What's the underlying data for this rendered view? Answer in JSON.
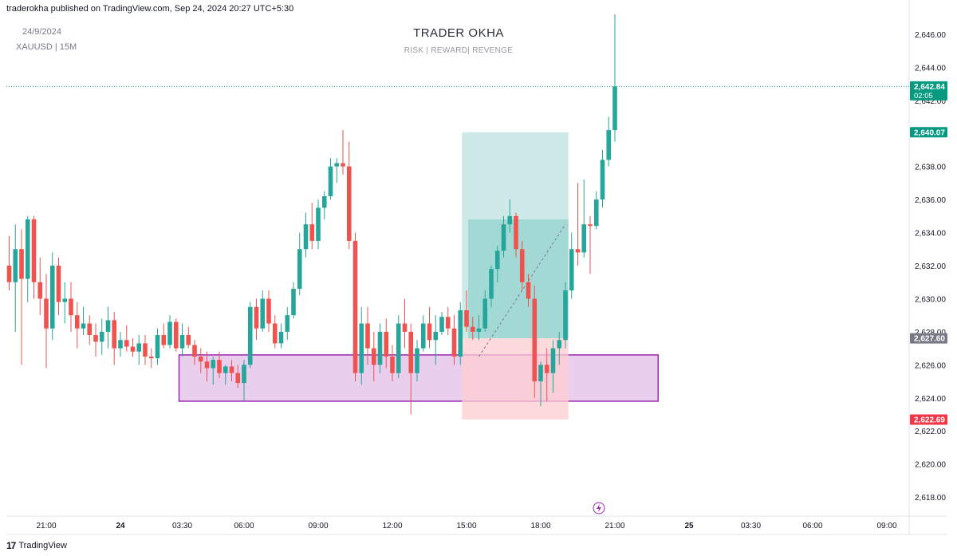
{
  "header": {
    "publisher": "traderokha published on TradingView.com, Sep 24, 2024 20:27 UTC+5:30"
  },
  "meta": {
    "date": "24/9/2024",
    "symbol": "XAUUSD | 15M"
  },
  "title": {
    "main": "TRADER OKHA",
    "sub": "RISK | REWARD| REVENGE"
  },
  "footer": {
    "brand": "TradingView",
    "logo_icon": "tradingview-logo-icon"
  },
  "colors": {
    "up": "#26a69a",
    "down": "#ef5350",
    "zone_stroke": "#9c27b0",
    "zone_fill": "#e1bee7",
    "profit": "#b2dfdb",
    "loss": "#ffcdd2"
  },
  "chart_data": {
    "type": "candlestick",
    "symbol": "XAUUSD",
    "interval": "15M",
    "ylim": [
      2616.8,
      2647.2
    ],
    "y_ticks": [
      "2,646.00",
      "2,644.00",
      "2,642.00",
      "2,640.00",
      "2,638.00",
      "2,636.00",
      "2,634.00",
      "2,632.00",
      "2,630.00",
      "2,628.00",
      "2,626.00",
      "2,624.00",
      "2,622.00",
      "2,620.00",
      "2,618.00"
    ],
    "x_ticks": [
      {
        "label": "21:00",
        "index": 6
      },
      {
        "label": "24",
        "index": 18
      },
      {
        "label": "03:30",
        "index": 28
      },
      {
        "label": "06:00",
        "index": 38
      },
      {
        "label": "09:00",
        "index": 50
      },
      {
        "label": "12:00",
        "index": 62
      },
      {
        "label": "15:00",
        "index": 74
      },
      {
        "label": "18:00",
        "index": 86
      },
      {
        "label": "21:00",
        "index": 98
      },
      {
        "label": "25",
        "index": 110
      },
      {
        "label": "03:30",
        "index": 120
      },
      {
        "label": "06:00",
        "index": 130
      },
      {
        "label": "09:00",
        "index": 142
      }
    ],
    "price_labels": [
      {
        "value": "2,642.84",
        "extra": "02:05",
        "price": 2642.84,
        "kind": "last"
      },
      {
        "value": "2,640.07",
        "price": 2640.07,
        "kind": "target"
      },
      {
        "value": "2,627.60",
        "price": 2627.6,
        "kind": "entry"
      },
      {
        "value": "2,622.69",
        "price": 2622.69,
        "kind": "stop"
      }
    ],
    "last_price_line": 2642.84,
    "zone": {
      "from_index": 28,
      "to_index": 105,
      "top": 2626.6,
      "bottom": 2623.8
    },
    "position": {
      "from_index": 73,
      "to_index": 91,
      "entry": 2627.6,
      "target": 2640.07,
      "stop": 2622.69,
      "inner_top": 2634.8,
      "inner_from_index": 74
    },
    "candles": [
      [
        2632.0,
        2633.8,
        2630.5,
        2631.0
      ],
      [
        2631.0,
        2634.5,
        2628.0,
        2633.0
      ],
      [
        2633.0,
        2634.2,
        2626.0,
        2631.2
      ],
      [
        2631.2,
        2635.0,
        2629.8,
        2634.8
      ],
      [
        2634.8,
        2635.0,
        2630.0,
        2631.0
      ],
      [
        2631.0,
        2632.5,
        2629.0,
        2630.0
      ],
      [
        2630.0,
        2631.5,
        2625.8,
        2628.2
      ],
      [
        2628.2,
        2632.8,
        2627.5,
        2632.0
      ],
      [
        2632.0,
        2632.5,
        2629.0,
        2629.8
      ],
      [
        2629.8,
        2631.0,
        2628.5,
        2630.0
      ],
      [
        2630.0,
        2631.0,
        2628.0,
        2629.0
      ],
      [
        2629.0,
        2629.8,
        2627.0,
        2628.2
      ],
      [
        2628.2,
        2629.5,
        2627.8,
        2628.5
      ],
      [
        2628.5,
        2629.0,
        2627.2,
        2627.8
      ],
      [
        2627.8,
        2628.5,
        2626.5,
        2627.4
      ],
      [
        2627.4,
        2628.8,
        2626.6,
        2628.0
      ],
      [
        2628.0,
        2629.5,
        2627.0,
        2628.7
      ],
      [
        2628.7,
        2629.2,
        2626.0,
        2627.0
      ],
      [
        2627.0,
        2628.0,
        2626.5,
        2627.5
      ],
      [
        2627.5,
        2628.4,
        2626.8,
        2627.1
      ],
      [
        2627.1,
        2627.6,
        2626.5,
        2626.8
      ],
      [
        2626.8,
        2627.8,
        2626.0,
        2627.3
      ],
      [
        2627.3,
        2627.8,
        2626.0,
        2626.5
      ],
      [
        2626.5,
        2627.0,
        2625.8,
        2626.4
      ],
      [
        2626.4,
        2628.2,
        2626.0,
        2627.8
      ],
      [
        2627.8,
        2628.5,
        2627.0,
        2627.2
      ],
      [
        2627.2,
        2629.0,
        2627.0,
        2628.6
      ],
      [
        2628.6,
        2628.8,
        2626.8,
        2627.0
      ],
      [
        2627.0,
        2628.5,
        2626.5,
        2627.8
      ],
      [
        2627.8,
        2628.3,
        2627.0,
        2627.2
      ],
      [
        2627.2,
        2627.5,
        2626.0,
        2626.5
      ],
      [
        2626.5,
        2627.0,
        2625.5,
        2626.2
      ],
      [
        2626.2,
        2626.8,
        2625.0,
        2625.8
      ],
      [
        2625.8,
        2626.5,
        2624.8,
        2626.3
      ],
      [
        2626.3,
        2626.8,
        2625.2,
        2625.5
      ],
      [
        2625.5,
        2626.0,
        2624.8,
        2625.9
      ],
      [
        2625.9,
        2626.3,
        2625.0,
        2625.5
      ],
      [
        2625.5,
        2626.0,
        2624.6,
        2624.9
      ],
      [
        2624.9,
        2626.3,
        2623.8,
        2626.0
      ],
      [
        2626.0,
        2629.8,
        2625.8,
        2629.5
      ],
      [
        2629.5,
        2630.0,
        2627.5,
        2628.2
      ],
      [
        2628.2,
        2630.5,
        2628.0,
        2630.0
      ],
      [
        2630.0,
        2630.5,
        2628.0,
        2628.5
      ],
      [
        2628.5,
        2629.0,
        2627.0,
        2627.3
      ],
      [
        2627.3,
        2628.5,
        2627.0,
        2628.0
      ],
      [
        2628.0,
        2629.5,
        2627.5,
        2629.0
      ],
      [
        2629.0,
        2631.0,
        2628.8,
        2630.6
      ],
      [
        2630.6,
        2634.0,
        2630.2,
        2633.0
      ],
      [
        2633.0,
        2635.2,
        2632.5,
        2634.5
      ],
      [
        2634.5,
        2635.8,
        2633.0,
        2633.5
      ],
      [
        2633.5,
        2636.0,
        2633.0,
        2635.5
      ],
      [
        2635.5,
        2636.5,
        2634.8,
        2636.2
      ],
      [
        2636.2,
        2638.5,
        2636.0,
        2638.0
      ],
      [
        2638.0,
        2638.5,
        2637.0,
        2638.2
      ],
      [
        2638.2,
        2640.2,
        2637.5,
        2638.0
      ],
      [
        2638.0,
        2639.5,
        2633.0,
        2633.5
      ],
      [
        2633.5,
        2634.0,
        2625.0,
        2625.5
      ],
      [
        2625.5,
        2629.5,
        2624.8,
        2628.5
      ],
      [
        2628.5,
        2629.5,
        2626.0,
        2627.0
      ],
      [
        2627.0,
        2628.0,
        2625.0,
        2626.0
      ],
      [
        2626.0,
        2628.5,
        2625.5,
        2628.0
      ],
      [
        2628.0,
        2628.8,
        2625.8,
        2626.5
      ],
      [
        2626.5,
        2627.2,
        2625.0,
        2625.5
      ],
      [
        2625.5,
        2629.0,
        2625.2,
        2628.5
      ],
      [
        2628.5,
        2630.0,
        2627.0,
        2628.0
      ],
      [
        2628.0,
        2628.5,
        2623.0,
        2625.5
      ],
      [
        2625.5,
        2627.5,
        2625.0,
        2627.0
      ],
      [
        2627.0,
        2629.0,
        2626.8,
        2628.5
      ],
      [
        2628.5,
        2629.5,
        2627.0,
        2627.5
      ],
      [
        2627.5,
        2629.0,
        2626.0,
        2628.0
      ],
      [
        2628.0,
        2629.2,
        2627.8,
        2628.9
      ],
      [
        2628.9,
        2629.5,
        2627.8,
        2628.2
      ],
      [
        2628.2,
        2629.0,
        2626.0,
        2626.5
      ],
      [
        2626.5,
        2629.8,
        2626.0,
        2629.3
      ],
      [
        2629.3,
        2630.5,
        2628.0,
        2628.3
      ],
      [
        2628.3,
        2628.9,
        2627.5,
        2628.0
      ],
      [
        2628.0,
        2629.0,
        2627.5,
        2628.2
      ],
      [
        2628.2,
        2630.5,
        2628.0,
        2630.0
      ],
      [
        2630.0,
        2632.0,
        2629.5,
        2631.8
      ],
      [
        2631.8,
        2633.2,
        2631.0,
        2632.9
      ],
      [
        2632.9,
        2635.0,
        2632.5,
        2634.5
      ],
      [
        2634.5,
        2636.0,
        2634.0,
        2635.0
      ],
      [
        2635.0,
        2635.2,
        2632.5,
        2633.0
      ],
      [
        2633.0,
        2633.5,
        2630.5,
        2631.0
      ],
      [
        2631.0,
        2631.5,
        2629.5,
        2630.0
      ],
      [
        2630.0,
        2630.8,
        2624.0,
        2625.0
      ],
      [
        2625.0,
        2626.2,
        2623.5,
        2626.0
      ],
      [
        2626.0,
        2627.0,
        2623.8,
        2625.5
      ],
      [
        2625.5,
        2627.5,
        2624.3,
        2627.0
      ],
      [
        2627.0,
        2628.0,
        2626.0,
        2627.5
      ],
      [
        2627.5,
        2631.0,
        2627.0,
        2630.5
      ],
      [
        2630.5,
        2634.0,
        2630.0,
        2633.0
      ],
      [
        2633.0,
        2637.0,
        2632.0,
        2632.8
      ],
      [
        2632.8,
        2637.2,
        2632.5,
        2634.5
      ],
      [
        2634.5,
        2635.0,
        2631.5,
        2634.4
      ],
      [
        2634.4,
        2636.5,
        2634.2,
        2636.0
      ],
      [
        2636.0,
        2639.0,
        2635.5,
        2638.4
      ],
      [
        2638.4,
        2641.0,
        2638.0,
        2640.2
      ],
      [
        2640.2,
        2647.2,
        2639.5,
        2642.84
      ]
    ]
  }
}
